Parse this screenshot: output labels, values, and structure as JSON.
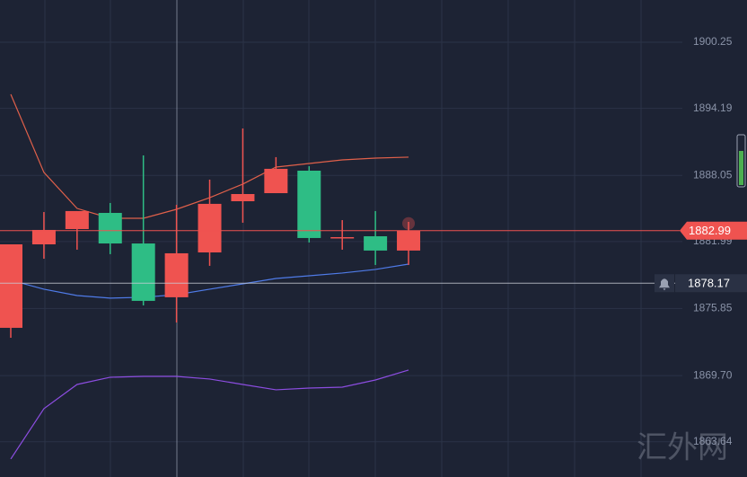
{
  "chart_data": {
    "type": "candlestick",
    "categories": [
      null,
      null,
      null,
      null,
      null,
      null,
      null,
      null,
      null,
      null,
      null,
      null,
      null
    ],
    "open": [
      1874.08,
      1881.73,
      1883.13,
      1884.61,
      1881.81,
      1876.88,
      1880.99,
      1885.68,
      1886.42,
      1888.48,
      1882.31,
      1882.47,
      1881.16
    ],
    "high": [
      1881.73,
      1884.69,
      1884.78,
      1885.52,
      1889.88,
      1885.35,
      1887.66,
      1892.35,
      1889.72,
      1888.89,
      1883.95,
      1884.78,
      1883.79
    ],
    "low": [
      1873.17,
      1880.41,
      1881.24,
      1880.83,
      1876.13,
      1874.57,
      1879.76,
      1883.71,
      1886.42,
      1881.9,
      1881.24,
      1879.84,
      1879.84
    ],
    "close": [
      1881.73,
      1883.05,
      1884.78,
      1881.81,
      1876.55,
      1880.91,
      1885.44,
      1886.34,
      1888.65,
      1882.31,
      1882.39,
      1881.16,
      1882.99
    ],
    "up_color": "#ef5350",
    "down_color": "#2ebd85",
    "lines": [
      {
        "color": "#e0604a",
        "values": [
          1895.48,
          1888.32,
          1885.02,
          1884.12,
          1884.12,
          1884.94,
          1886.01,
          1887.25,
          1888.81,
          1889.14,
          1889.47,
          1889.63,
          1889.72
        ]
      },
      {
        "color": "#4f7be8",
        "values": [
          1878.44,
          1877.62,
          1877.04,
          1876.8,
          1876.88,
          1877.12,
          1877.62,
          1878.11,
          1878.6,
          1878.85,
          1879.1,
          1879.43,
          1879.92
        ]
      },
      {
        "color": "#8c4de0",
        "values": [
          1862.06,
          1866.67,
          1868.89,
          1869.55,
          1869.63,
          1869.63,
          1869.39,
          1868.89,
          1868.4,
          1868.56,
          1868.64,
          1869.3,
          1870.21
        ]
      }
    ],
    "ylim": [
      1860.41,
      1904.12
    ],
    "yticks": [
      1900.25,
      1894.19,
      1888.05,
      1881.99,
      1875.85,
      {
        "value": 1869.7,
        "label": "1869.70"
      },
      1863.64
    ],
    "grid": true,
    "current_price": 1882.99,
    "crosshair_price": 1878.17,
    "watermark": "汇外网"
  }
}
